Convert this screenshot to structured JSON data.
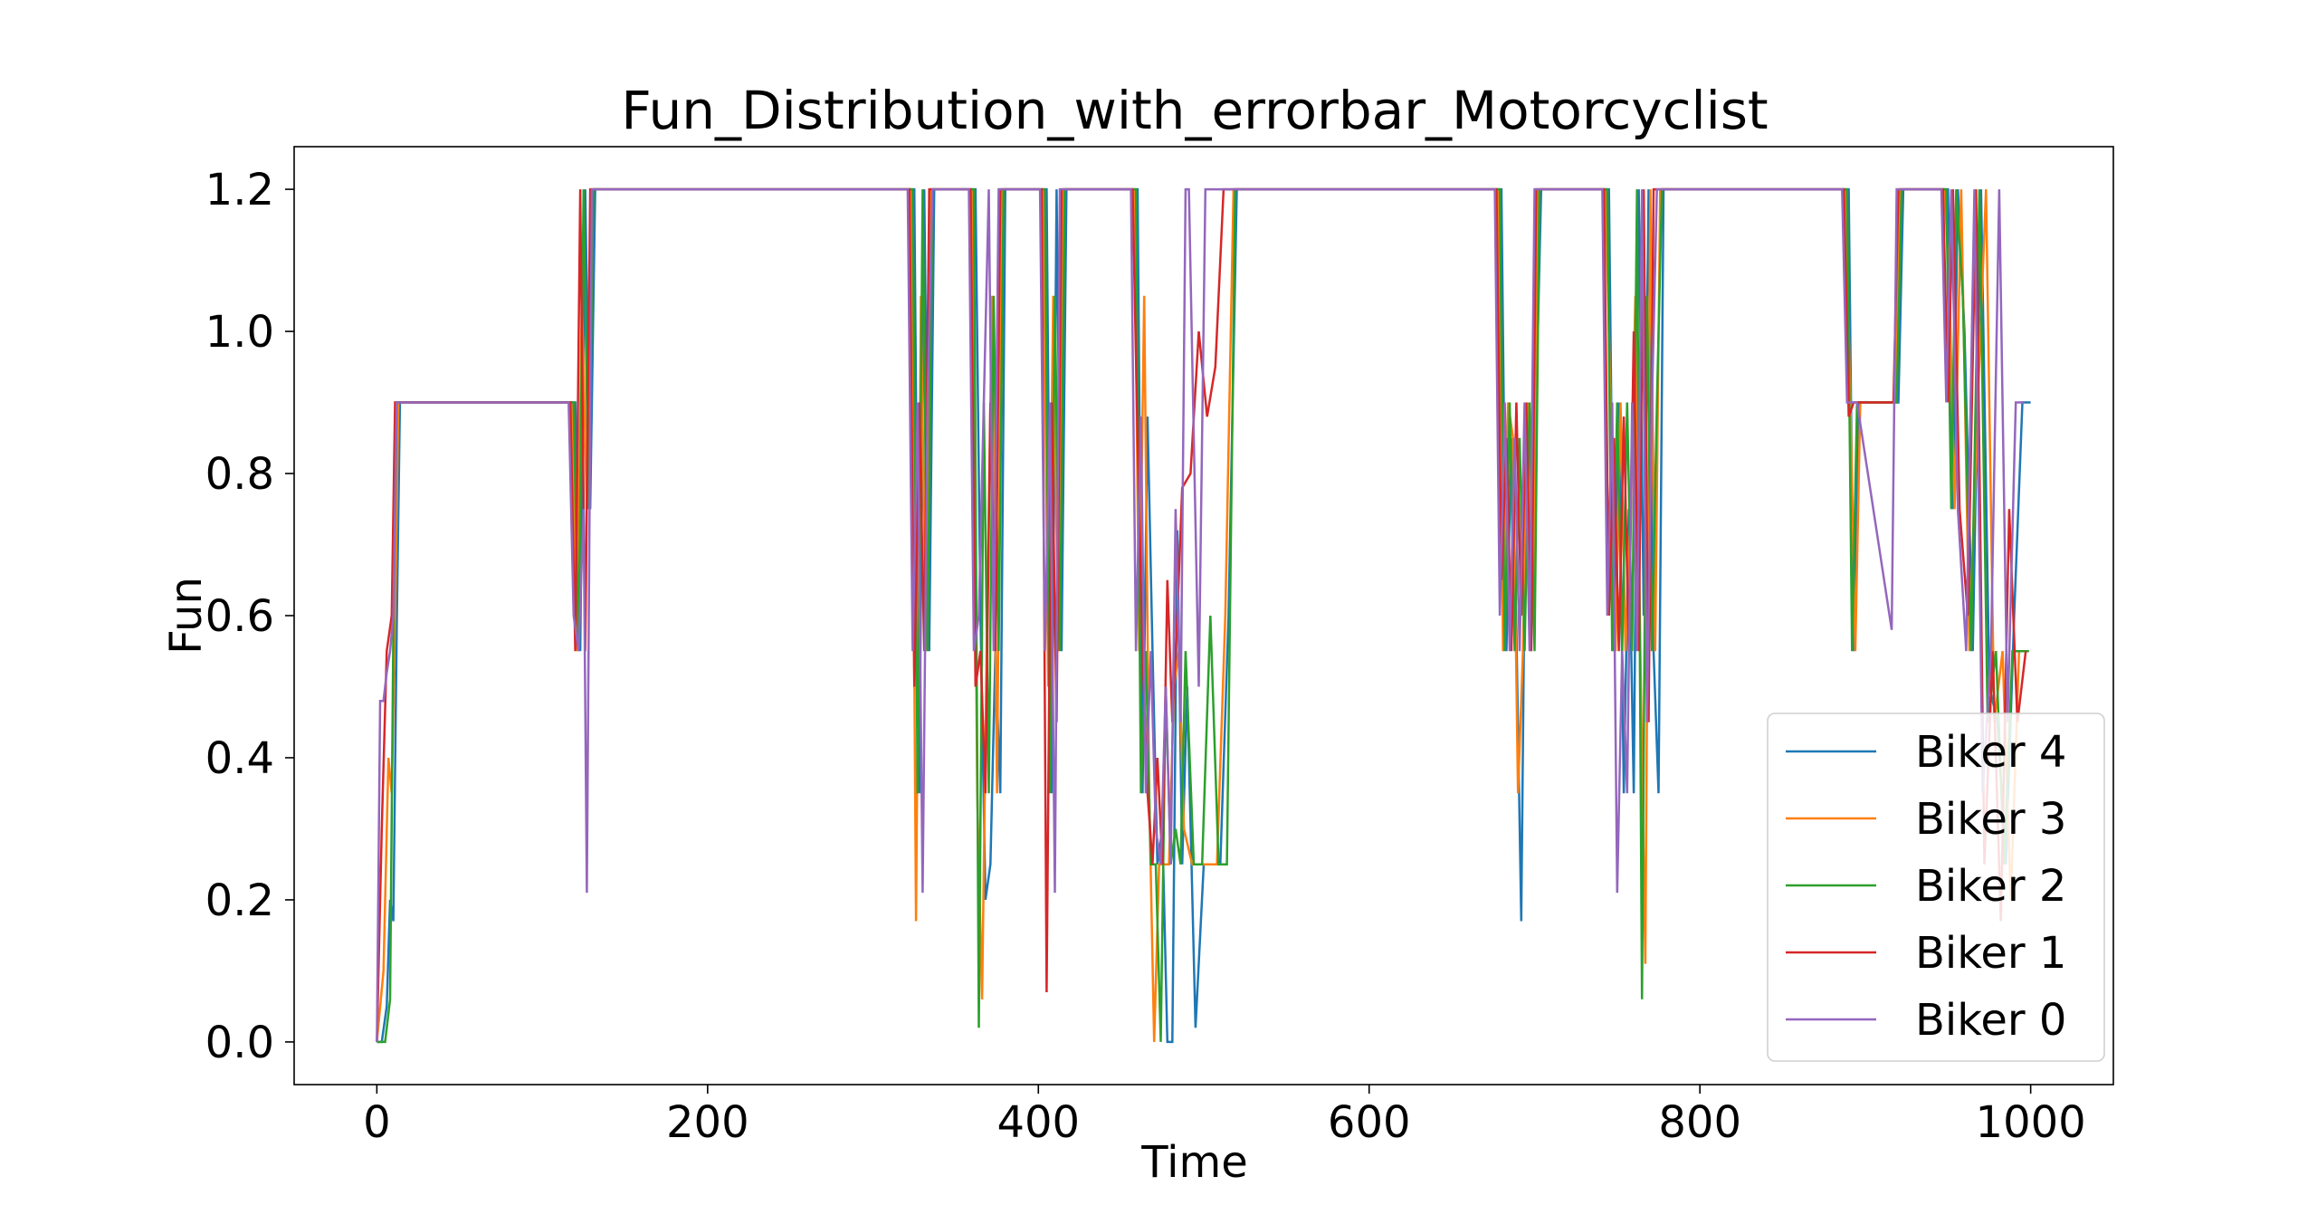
{
  "chart_data": {
    "type": "line",
    "title": "Fun_Distribution_with_errorbar_Motorcyclist",
    "xlabel": "Time",
    "ylabel": "Fun",
    "xlim": [
      -50,
      1050
    ],
    "ylim": [
      -0.06,
      1.26
    ],
    "xticks": [
      0,
      200,
      400,
      600,
      800,
      1000
    ],
    "xtick_labels": [
      "0",
      "200",
      "400",
      "600",
      "800",
      "1000"
    ],
    "yticks": [
      0.0,
      0.2,
      0.4,
      0.6,
      0.8,
      1.0,
      1.2
    ],
    "ytick_labels": [
      "0.0",
      "0.2",
      "0.4",
      "0.6",
      "0.8",
      "1.0",
      "1.2"
    ],
    "grid": false,
    "legend_position": "lower-right",
    "series": [
      {
        "name": "Biker 4",
        "color": "#1f77b4",
        "x": [
          0,
          3,
          6,
          8,
          10,
          12,
          14,
          120,
          123,
          126,
          129,
          132,
          135,
          325,
          328,
          331,
          334,
          337,
          340,
          362,
          365,
          368,
          371,
          374,
          377,
          380,
          405,
          408,
          411,
          414,
          417,
          420,
          460,
          463,
          466,
          469,
          472,
          475,
          478,
          481,
          484,
          487,
          490,
          495,
          500,
          505,
          510,
          515,
          520,
          525,
          680,
          683,
          686,
          689,
          692,
          695,
          698,
          701,
          704,
          707,
          745,
          748,
          751,
          754,
          757,
          760,
          763,
          766,
          769,
          772,
          775,
          778,
          781,
          784,
          890,
          893,
          896,
          899,
          920,
          923,
          926,
          950,
          953,
          956,
          960,
          965,
          970,
          975,
          980,
          985,
          990,
          995,
          1000
        ],
        "y": [
          0.0,
          0.0,
          0.05,
          0.2,
          0.17,
          0.58,
          0.9,
          0.9,
          0.55,
          1.2,
          0.75,
          1.2,
          1.2,
          1.2,
          0.35,
          1.2,
          0.55,
          1.2,
          1.2,
          1.2,
          0.6,
          0.2,
          0.25,
          0.55,
          0.35,
          1.2,
          1.2,
          0.35,
          1.2,
          0.55,
          1.2,
          1.2,
          1.2,
          0.35,
          0.88,
          0.55,
          0.25,
          0.3,
          0.0,
          0.0,
          0.72,
          0.25,
          0.5,
          0.02,
          0.25,
          0.25,
          0.25,
          0.6,
          1.2,
          1.2,
          1.2,
          0.55,
          0.85,
          0.58,
          0.17,
          0.9,
          0.55,
          0.9,
          1.2,
          1.2,
          1.2,
          0.55,
          0.9,
          0.35,
          0.75,
          0.35,
          1.2,
          0.6,
          1.2,
          0.55,
          0.35,
          1.2,
          1.2,
          1.2,
          1.2,
          0.55,
          0.9,
          0.9,
          0.9,
          1.2,
          1.2,
          1.2,
          0.75,
          1.2,
          1.0,
          0.55,
          1.2,
          0.5,
          0.45,
          0.25,
          0.6,
          0.9,
          0.9
        ]
      },
      {
        "name": "Biker 3",
        "color": "#ff7f0e",
        "x": [
          0,
          4,
          7,
          9,
          11,
          13,
          15,
          118,
          121,
          124,
          127,
          130,
          133,
          323,
          326,
          329,
          332,
          335,
          338,
          360,
          363,
          366,
          369,
          372,
          375,
          378,
          403,
          406,
          409,
          412,
          415,
          418,
          458,
          461,
          464,
          467,
          470,
          473,
          476,
          479,
          482,
          485,
          488,
          493,
          498,
          503,
          508,
          513,
          518,
          523,
          678,
          681,
          684,
          687,
          690,
          693,
          696,
          699,
          702,
          705,
          743,
          746,
          749,
          752,
          755,
          758,
          761,
          764,
          767,
          770,
          773,
          776,
          779,
          782,
          888,
          891,
          894,
          897,
          918,
          921,
          924,
          948,
          951,
          954,
          958,
          963,
          968,
          973,
          978,
          983,
          988,
          993,
          998
        ],
        "y": [
          0.0,
          0.1,
          0.4,
          0.35,
          0.6,
          0.9,
          0.9,
          0.9,
          0.55,
          1.05,
          0.75,
          1.2,
          1.2,
          1.2,
          0.17,
          1.05,
          0.55,
          1.2,
          1.2,
          1.2,
          0.35,
          0.06,
          0.6,
          1.05,
          0.35,
          1.2,
          1.2,
          0.5,
          1.05,
          0.55,
          1.2,
          1.2,
          1.2,
          0.55,
          1.05,
          0.35,
          0.0,
          0.25,
          0.25,
          0.25,
          0.5,
          0.55,
          0.3,
          0.25,
          0.25,
          0.25,
          0.25,
          0.6,
          1.2,
          1.2,
          1.2,
          0.55,
          0.9,
          0.85,
          0.35,
          0.55,
          0.9,
          0.6,
          1.2,
          1.2,
          1.2,
          0.9,
          0.55,
          0.9,
          0.55,
          0.75,
          1.05,
          0.55,
          0.11,
          1.2,
          0.55,
          1.2,
          1.2,
          1.2,
          1.2,
          0.9,
          0.55,
          0.9,
          0.9,
          1.2,
          1.2,
          1.2,
          1.05,
          0.75,
          1.2,
          0.55,
          0.9,
          1.2,
          0.45,
          0.55,
          0.2,
          0.55,
          0.55
        ]
      },
      {
        "name": "Biker 2",
        "color": "#2ca02c",
        "x": [
          0,
          5,
          8,
          10,
          12,
          14,
          16,
          119,
          122,
          125,
          128,
          131,
          134,
          324,
          327,
          330,
          333,
          336,
          339,
          361,
          364,
          367,
          370,
          373,
          376,
          379,
          404,
          407,
          410,
          413,
          416,
          419,
          459,
          462,
          465,
          468,
          471,
          474,
          477,
          480,
          483,
          486,
          489,
          494,
          499,
          504,
          509,
          514,
          519,
          524,
          679,
          682,
          685,
          688,
          691,
          694,
          697,
          700,
          703,
          706,
          744,
          747,
          750,
          753,
          756,
          759,
          762,
          765,
          768,
          771,
          774,
          777,
          780,
          783,
          889,
          892,
          895,
          898,
          919,
          922,
          925,
          949,
          952,
          955,
          959,
          964,
          969,
          974,
          979,
          984,
          989,
          994,
          999
        ],
        "y": [
          0.0,
          0.0,
          0.06,
          0.58,
          0.9,
          0.9,
          0.9,
          0.9,
          0.55,
          1.2,
          0.75,
          1.2,
          1.2,
          1.2,
          0.35,
          1.2,
          0.55,
          1.2,
          1.2,
          1.2,
          0.02,
          0.9,
          0.35,
          1.05,
          0.55,
          1.2,
          1.2,
          0.35,
          1.05,
          0.55,
          1.2,
          1.2,
          1.2,
          0.35,
          0.55,
          0.25,
          0.25,
          0.0,
          0.5,
          0.25,
          0.3,
          0.25,
          0.55,
          0.25,
          0.25,
          0.6,
          0.25,
          0.25,
          1.2,
          1.2,
          1.2,
          0.55,
          0.9,
          0.55,
          0.85,
          0.55,
          0.9,
          0.55,
          1.2,
          1.2,
          1.2,
          0.55,
          0.9,
          0.55,
          0.9,
          0.55,
          1.2,
          0.06,
          1.05,
          0.55,
          0.9,
          1.2,
          1.2,
          1.2,
          1.2,
          0.55,
          0.9,
          0.9,
          0.9,
          1.2,
          1.2,
          1.2,
          0.75,
          1.2,
          1.05,
          0.55,
          1.2,
          0.45,
          0.55,
          0.25,
          0.55,
          0.55,
          0.55
        ]
      },
      {
        "name": "Biker 1",
        "color": "#d62728",
        "x": [
          0,
          3,
          6,
          9,
          11,
          13,
          15,
          117,
          120,
          123,
          126,
          129,
          132,
          322,
          325,
          328,
          331,
          334,
          337,
          359,
          362,
          365,
          368,
          371,
          374,
          377,
          402,
          405,
          408,
          411,
          414,
          417,
          457,
          460,
          463,
          466,
          469,
          472,
          475,
          478,
          481,
          484,
          487,
          492,
          497,
          502,
          507,
          512,
          517,
          522,
          677,
          680,
          683,
          686,
          689,
          692,
          695,
          698,
          701,
          704,
          742,
          745,
          748,
          751,
          754,
          757,
          760,
          763,
          766,
          769,
          772,
          775,
          778,
          781,
          887,
          890,
          893,
          896,
          917,
          920,
          923,
          947,
          950,
          953,
          957,
          962,
          967,
          972,
          977,
          982,
          987,
          992,
          997
        ],
        "y": [
          0.0,
          0.3,
          0.55,
          0.6,
          0.9,
          0.9,
          0.9,
          0.9,
          0.55,
          1.2,
          0.55,
          1.2,
          1.2,
          1.2,
          0.5,
          0.9,
          0.55,
          1.2,
          1.2,
          1.2,
          0.5,
          0.55,
          0.35,
          0.9,
          0.55,
          1.2,
          1.2,
          0.07,
          0.9,
          0.45,
          1.2,
          1.2,
          1.2,
          0.85,
          0.55,
          0.35,
          0.25,
          0.4,
          0.25,
          0.65,
          0.45,
          0.6,
          0.78,
          0.8,
          1.0,
          0.88,
          0.95,
          1.2,
          1.2,
          1.2,
          1.2,
          0.65,
          0.85,
          0.55,
          0.9,
          0.6,
          0.9,
          0.55,
          1.2,
          1.2,
          1.2,
          0.6,
          0.85,
          0.55,
          0.88,
          0.55,
          1.0,
          0.55,
          1.2,
          0.45,
          1.2,
          1.2,
          1.2,
          1.2,
          1.2,
          0.88,
          0.9,
          0.9,
          0.9,
          1.2,
          1.2,
          1.2,
          0.9,
          1.2,
          0.75,
          0.6,
          1.2,
          0.25,
          0.55,
          0.17,
          0.75,
          0.45,
          0.55
        ]
      },
      {
        "name": "Biker 0",
        "color": "#9467bd",
        "x": [
          0,
          2,
          4,
          6,
          8,
          10,
          12,
          116,
          119,
          122,
          125,
          127,
          130,
          321,
          324,
          327,
          330,
          333,
          336,
          358,
          361,
          364,
          367,
          370,
          373,
          376,
          401,
          404,
          407,
          410,
          413,
          416,
          456,
          459,
          462,
          465,
          468,
          471,
          474,
          477,
          480,
          483,
          486,
          489,
          491,
          494,
          497,
          501,
          506,
          511,
          676,
          679,
          682,
          685,
          688,
          691,
          694,
          697,
          700,
          703,
          741,
          744,
          747,
          750,
          753,
          756,
          759,
          762,
          765,
          768,
          771,
          774,
          777,
          780,
          886,
          889,
          892,
          895,
          916,
          919,
          922,
          946,
          949,
          952,
          956,
          961,
          966,
          971,
          976,
          981,
          986,
          991,
          996
        ],
        "y": [
          0.0,
          0.48,
          0.48,
          0.52,
          0.55,
          0.6,
          0.9,
          0.9,
          0.6,
          0.55,
          0.75,
          0.21,
          1.2,
          1.2,
          0.55,
          0.9,
          0.21,
          0.9,
          1.2,
          1.2,
          0.55,
          0.6,
          0.9,
          1.2,
          0.55,
          1.2,
          1.2,
          0.55,
          0.9,
          0.21,
          1.2,
          1.2,
          1.2,
          0.55,
          0.88,
          0.35,
          0.55,
          0.3,
          0.25,
          0.5,
          0.25,
          0.75,
          0.45,
          1.2,
          1.2,
          0.85,
          0.5,
          1.2,
          1.2,
          1.2,
          1.2,
          0.6,
          0.9,
          0.55,
          0.85,
          0.55,
          0.9,
          0.55,
          1.2,
          1.2,
          1.2,
          0.6,
          0.9,
          0.21,
          0.55,
          0.35,
          0.9,
          0.55,
          1.2,
          0.45,
          0.9,
          1.2,
          1.2,
          1.2,
          1.2,
          0.9,
          0.9,
          0.9,
          0.58,
          1.2,
          1.2,
          1.2,
          0.9,
          1.2,
          0.75,
          0.55,
          1.2,
          0.35,
          0.55,
          1.2,
          0.45,
          0.9,
          0.9
        ]
      }
    ]
  }
}
